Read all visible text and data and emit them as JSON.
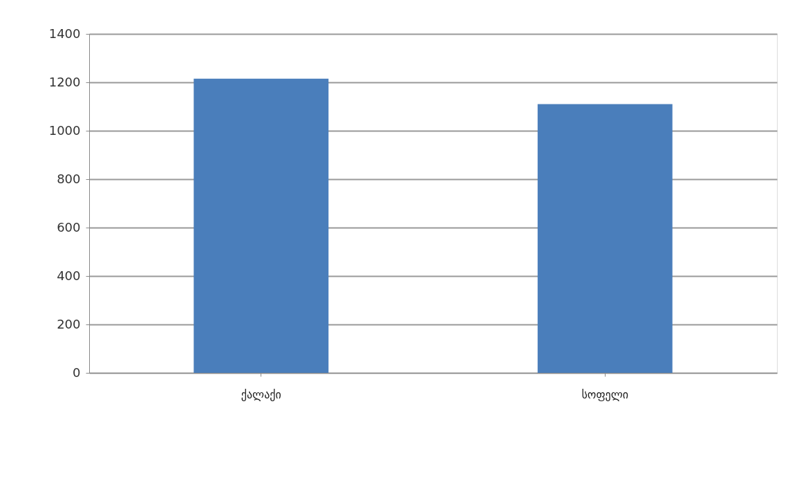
{
  "chart_data": {
    "type": "bar",
    "categories": [
      "ქალაქი",
      "სოფელი"
    ],
    "values": [
      1215,
      1110
    ],
    "color": "#4a7ebb",
    "ylim": [
      0,
      1400
    ],
    "yticks": [
      0,
      200,
      400,
      600,
      800,
      1000,
      1200,
      1400
    ],
    "grid": "y"
  }
}
